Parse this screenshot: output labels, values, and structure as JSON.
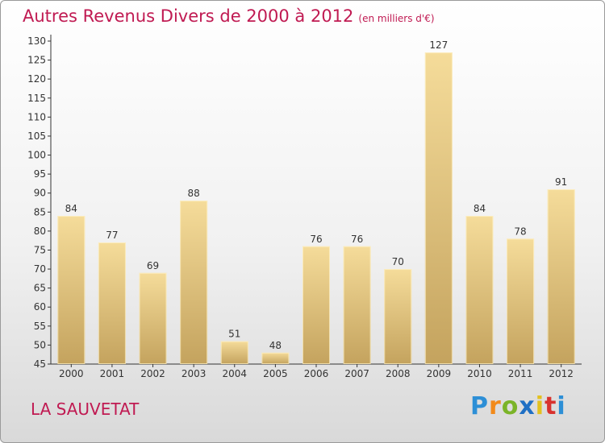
{
  "header": {
    "title": "Autres Revenus Divers de 2000 à 2012",
    "subtitle": "(en milliers d'€)"
  },
  "footer": {
    "commune": "LA SAUVETAT",
    "brand": [
      "P",
      "r",
      "o",
      "x",
      "i",
      "t",
      "i"
    ]
  },
  "chart_data": {
    "type": "bar",
    "title": "Autres Revenus Divers de 2000 à 2012",
    "subtitle": "(en milliers d'€)",
    "categories": [
      "2000",
      "2001",
      "2002",
      "2003",
      "2004",
      "2005",
      "2006",
      "2007",
      "2008",
      "2009",
      "2010",
      "2011",
      "2012"
    ],
    "values": [
      84,
      77,
      69,
      88,
      51,
      48,
      76,
      76,
      70,
      127,
      84,
      78,
      91
    ],
    "ylim": [
      45,
      130
    ],
    "yticks": [
      45,
      50,
      55,
      60,
      65,
      70,
      75,
      80,
      85,
      90,
      95,
      100,
      105,
      110,
      115,
      120,
      125,
      130
    ],
    "grid": false,
    "data_labels": true,
    "colors": {
      "bar_light": "#f5dc9a",
      "bar_dark": "#c4a35e",
      "title": "#c01a52"
    }
  }
}
